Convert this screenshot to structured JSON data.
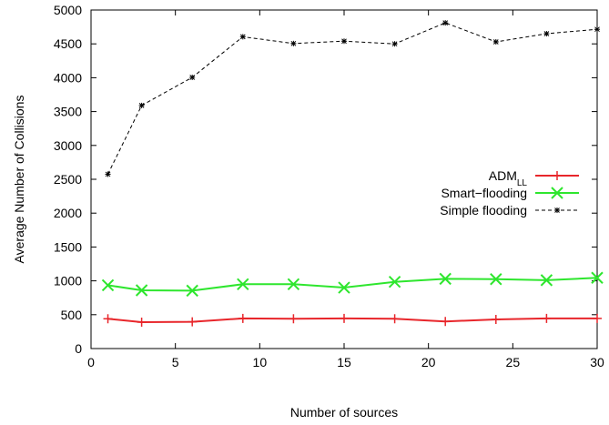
{
  "chart_data": {
    "type": "line",
    "title": "",
    "xlabel": "Number of sources",
    "ylabel": "Average Number of Collisions",
    "xlim": [
      0,
      30
    ],
    "ylim": [
      0,
      5000
    ],
    "xticks": [
      0,
      5,
      10,
      15,
      20,
      25,
      30
    ],
    "yticks": [
      0,
      500,
      1000,
      1500,
      2000,
      2500,
      3000,
      3500,
      4000,
      4500,
      5000
    ],
    "grid": false,
    "legend_position": "right-middle",
    "x": [
      1,
      3,
      6,
      9,
      12,
      15,
      18,
      21,
      24,
      27,
      30
    ],
    "series": [
      {
        "name": "ADM",
        "name_subscript": "LL",
        "color": "#e8262b",
        "marker": "plus",
        "line": "solid",
        "values": [
          440,
          390,
          395,
          445,
          440,
          445,
          440,
          400,
          430,
          445,
          445
        ]
      },
      {
        "name": "Smart−flooding",
        "color": "#2ee62e",
        "marker": "cross",
        "line": "solid",
        "values": [
          935,
          860,
          855,
          950,
          950,
          900,
          985,
          1030,
          1025,
          1010,
          1045
        ]
      },
      {
        "name": "Simple flooding",
        "color": "#000000",
        "marker": "star",
        "line": "dashed",
        "values": [
          2575,
          3590,
          4005,
          4605,
          4505,
          4540,
          4500,
          4810,
          4530,
          4650,
          4715
        ]
      }
    ]
  }
}
